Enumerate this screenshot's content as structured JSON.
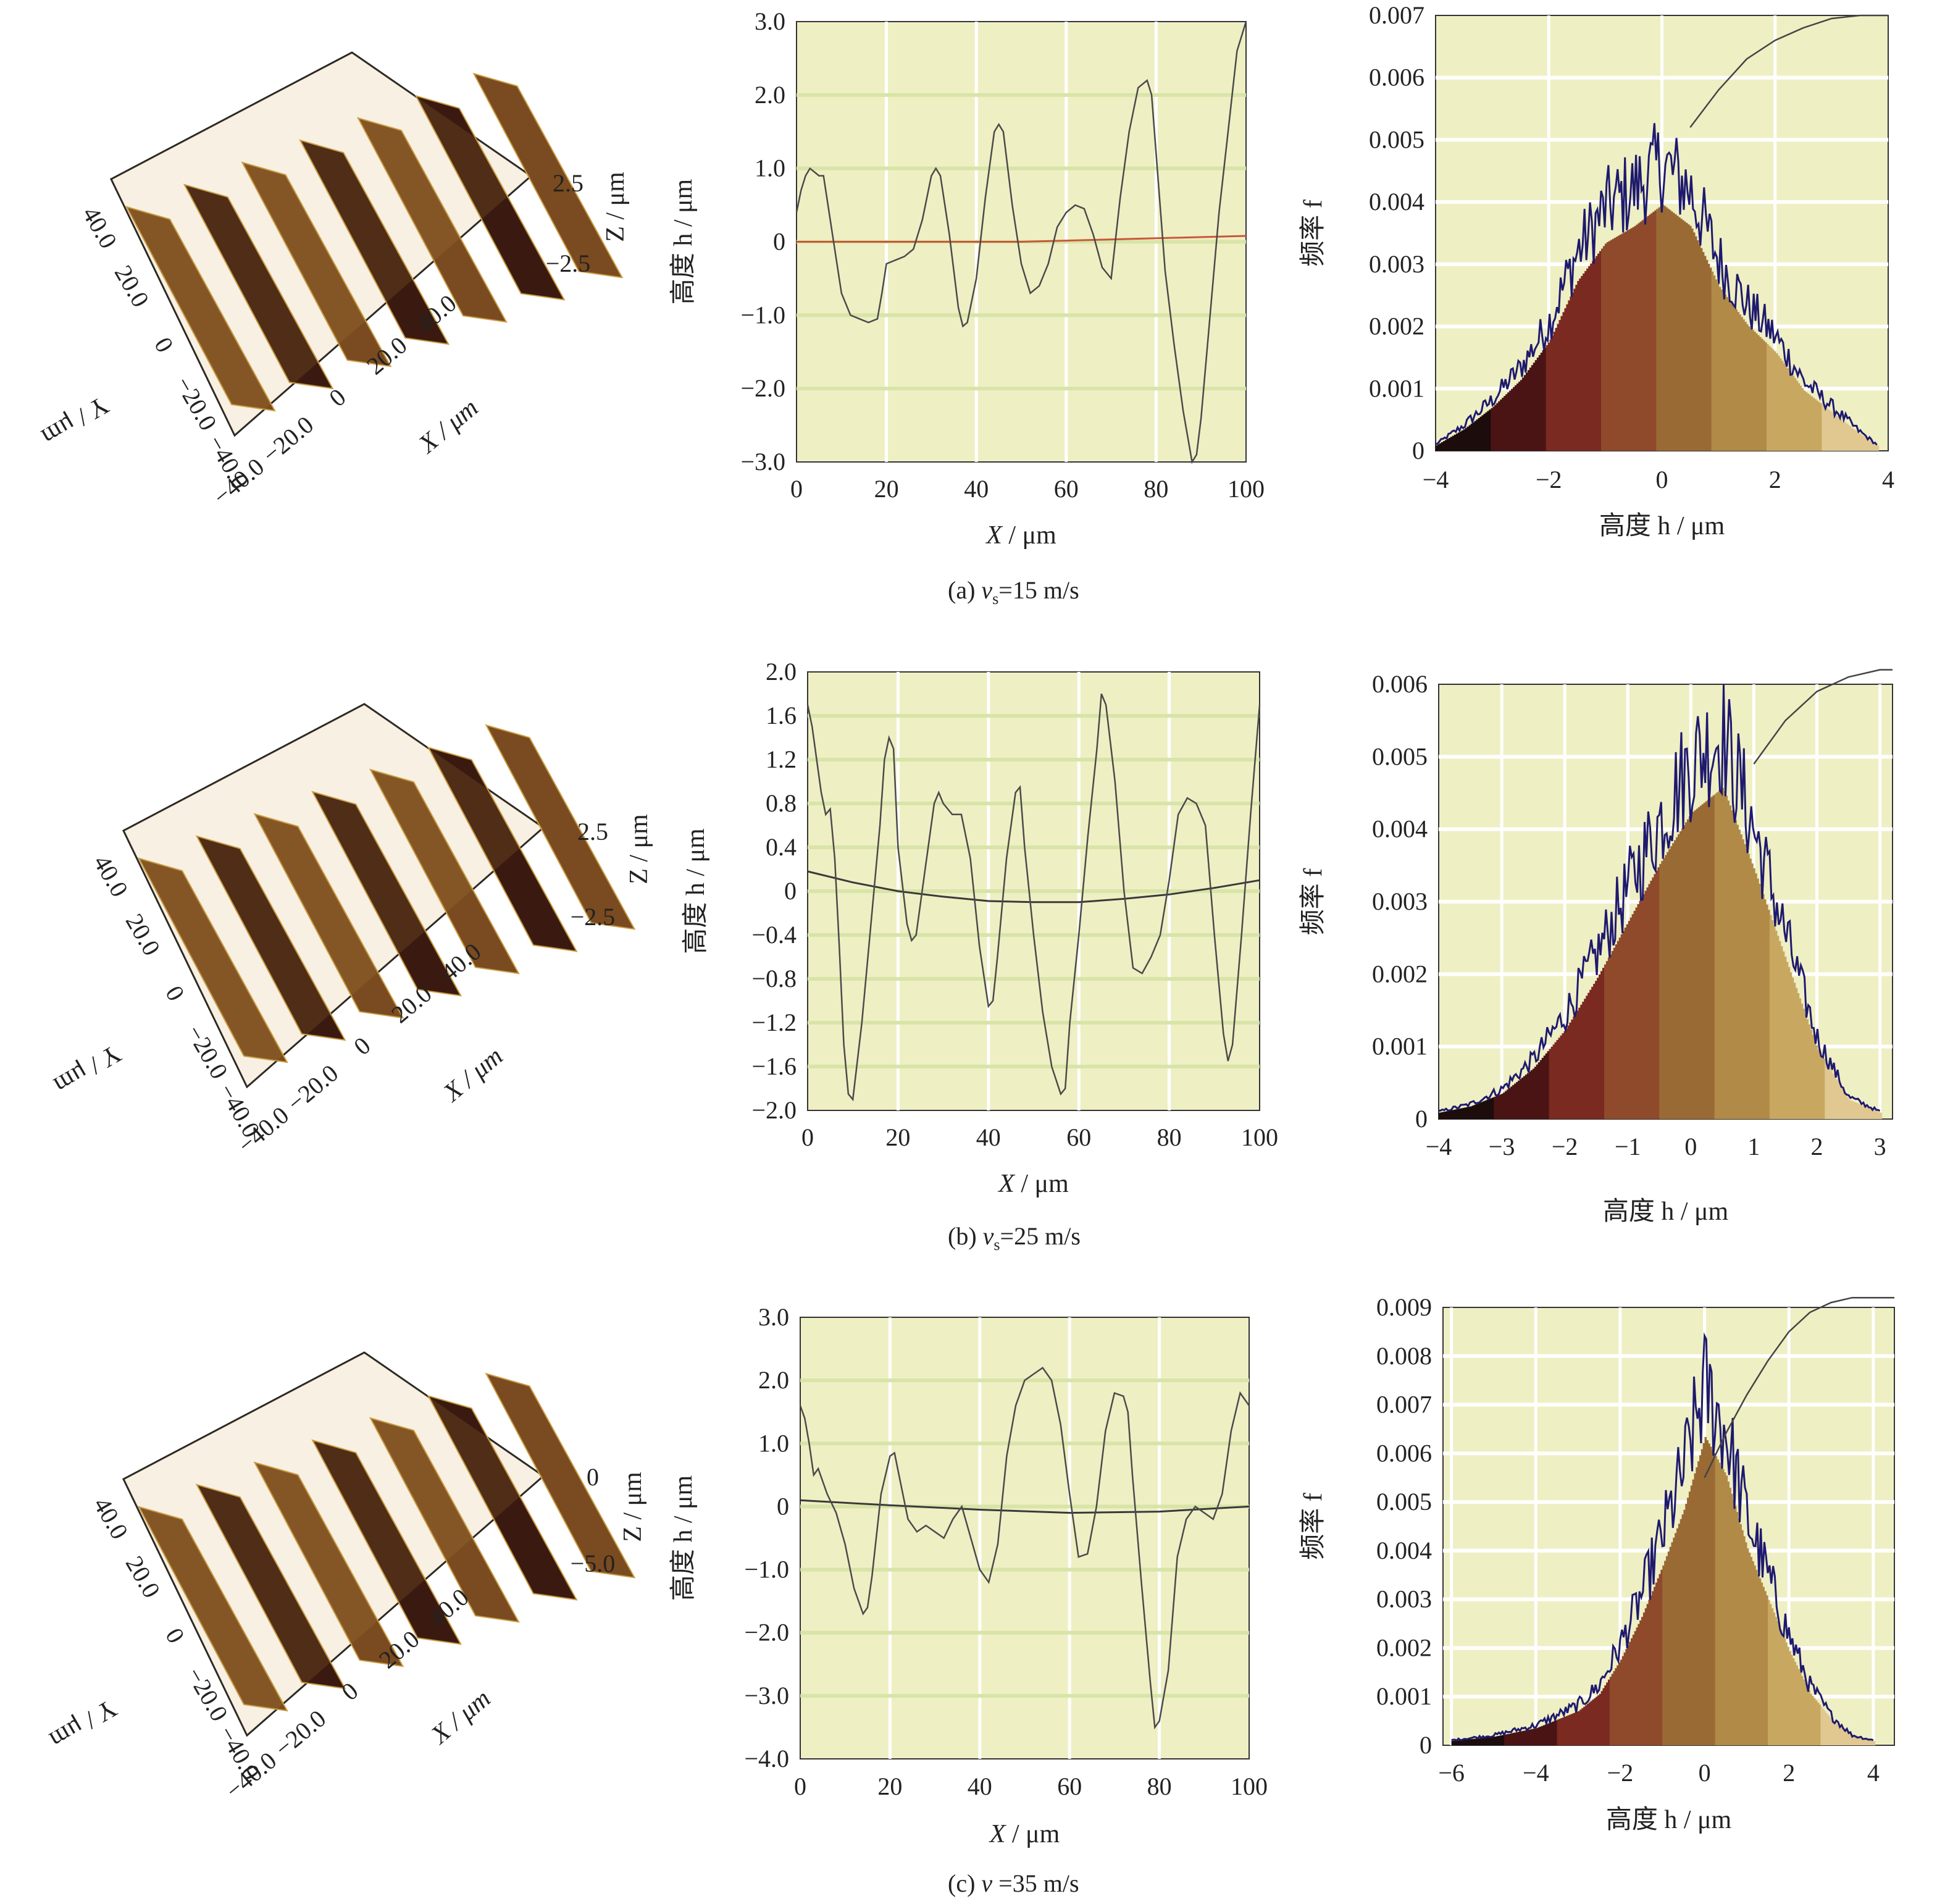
{
  "colors": {
    "plot_bg": "#efefc4",
    "plot_grid_major": "#ffffff",
    "plot_grid_band": "#d8e4a8",
    "profile_line": "#4a4a4a",
    "profile_fit_line": "#c8583a",
    "histogram_outline": "#1e1a6e",
    "histogram_fill_palette": [
      "#1c0c0c",
      "#4a1414",
      "#7a2a20",
      "#8e4a2a",
      "#9a6a34",
      "#b08a46",
      "#c8a860",
      "#e0c890"
    ],
    "surface_dark": "#3a1a10",
    "surface_mid": "#7a4a20",
    "surface_light": "#c89a40"
  },
  "panels": [
    {
      "caption": "(a) v_s=15 m/s",
      "caption_parts": {
        "prefix": "(a) ",
        "v": "v",
        "sub": "s",
        "suffix": "=15 m/s"
      },
      "surface": {
        "z_label": "Z / μm",
        "z_ticks": [
          "2.5",
          "−2.5"
        ],
        "x_label": "X / μm",
        "x_ticks": [
          "−40.0",
          "−20.0",
          "0",
          "20.0",
          "40.0"
        ],
        "y_label": "Y / μm",
        "y_ticks": [
          "40.0",
          "20.0",
          "0",
          "−20.0",
          "−40.0"
        ]
      }
    },
    {
      "caption": "(b) v_s=25 m/s",
      "caption_parts": {
        "prefix": "(b) ",
        "v": "v",
        "sub": "s",
        "suffix": "=25 m/s"
      },
      "surface": {
        "z_label": "Z / μm",
        "z_ticks": [
          "2.5",
          "−2.5"
        ],
        "x_label": "X / μm",
        "x_ticks": [
          "−40.0",
          "−20.0",
          "0",
          "20.0",
          "40.0"
        ],
        "y_label": "Y / μm",
        "y_ticks": [
          "40.0",
          "20.0",
          "0",
          "−20.0",
          "−40.0"
        ]
      }
    },
    {
      "caption": "(c) v =35 m/s",
      "caption_parts": {
        "prefix": "(c) ",
        "v": "v",
        "sub": "",
        "suffix": " =35 m/s"
      },
      "surface": {
        "z_label": "Z / μm",
        "z_ticks": [
          "0",
          "−5.0"
        ],
        "x_label": "X / μm",
        "x_ticks": [
          "−40.0",
          "−20.0",
          "0",
          "20.0",
          "40.0"
        ],
        "y_label": "Y / μm",
        "y_ticks": [
          "40.0",
          "20.0",
          "0",
          "−20.0",
          "−40.0"
        ]
      }
    }
  ],
  "chart_data": [
    {
      "type": "line",
      "panel": "a",
      "xlabel": "X / μm",
      "ylabel": "高度 h / μm",
      "xlim": [
        0,
        100
      ],
      "ylim": [
        -3.0,
        3.0
      ],
      "xticks": [
        "0",
        "20",
        "40",
        "60",
        "80",
        "100"
      ],
      "yticks": [
        "3.0",
        "2.0",
        "1.0",
        "0",
        "−1.0",
        "−2.0",
        "−3.0"
      ],
      "ytick_values": [
        3,
        2,
        1,
        0,
        -1,
        -2,
        -3
      ],
      "series": [
        {
          "x": [
            0,
            1,
            2,
            3,
            4,
            5,
            6,
            8,
            10,
            12,
            14,
            16,
            18,
            19,
            20,
            22,
            24,
            26,
            28,
            30,
            31,
            32,
            34,
            36,
            37,
            38,
            40,
            42,
            44,
            45,
            46,
            48,
            50,
            52,
            54,
            56,
            58,
            60,
            62,
            64,
            66,
            68,
            70,
            72,
            74,
            76,
            78,
            79,
            80,
            82,
            84,
            86,
            88,
            89,
            90,
            92,
            94,
            96,
            98,
            100
          ],
          "y": [
            0.4,
            0.7,
            0.9,
            1.0,
            0.95,
            0.9,
            0.9,
            0.1,
            -0.7,
            -1.0,
            -1.05,
            -1.1,
            -1.05,
            -0.7,
            -0.3,
            -0.25,
            -0.2,
            -0.1,
            0.3,
            0.9,
            1.0,
            0.9,
            0.1,
            -0.9,
            -1.15,
            -1.1,
            -0.5,
            0.6,
            1.5,
            1.6,
            1.5,
            0.5,
            -0.3,
            -0.7,
            -0.6,
            -0.3,
            0.2,
            0.4,
            0.5,
            0.45,
            0.1,
            -0.35,
            -0.5,
            0.6,
            1.5,
            2.1,
            2.2,
            2.0,
            1.2,
            -0.4,
            -1.4,
            -2.3,
            -3.0,
            -2.9,
            -2.4,
            -1.0,
            0.4,
            1.5,
            2.6,
            3.0
          ]
        },
        {
          "x": [
            0,
            50,
            100
          ],
          "y": [
            0.0,
            0.0,
            0.08
          ]
        }
      ]
    },
    {
      "type": "area",
      "panel": "a",
      "xlabel": "高度 h / μm",
      "ylabel": "频率 f",
      "xlim": [
        -4,
        4
      ],
      "ylim": [
        0,
        0.007
      ],
      "xticks": [
        "−4",
        "−2",
        "0",
        "2",
        "4"
      ],
      "yticks": [
        "0.007",
        "0.006",
        "0.005",
        "0.004",
        "0.003",
        "0.002",
        "0.001",
        "0"
      ],
      "ytick_values": [
        0.007,
        0.006,
        0.005,
        0.004,
        0.003,
        0.002,
        0.001,
        0
      ],
      "series": [
        {
          "x": [
            -4,
            -3.5,
            -3,
            -2.5,
            -2,
            -1.5,
            -1,
            -0.5,
            0,
            0.5,
            1,
            1.5,
            2,
            2.5,
            3,
            3.5,
            3.8
          ],
          "y": [
            0.0001,
            0.0004,
            0.0008,
            0.0013,
            0.002,
            0.0031,
            0.0038,
            0.0041,
            0.0045,
            0.0041,
            0.003,
            0.0023,
            0.0018,
            0.0011,
            0.0007,
            0.0003,
            0.0001
          ]
        },
        {
          "x": [
            0.5,
            1,
            1.5,
            2,
            2.5,
            3,
            3.5,
            4
          ],
          "y": [
            0.0052,
            0.0058,
            0.0063,
            0.0066,
            0.0068,
            0.00695,
            0.007,
            0.007
          ]
        }
      ]
    },
    {
      "type": "line",
      "panel": "b",
      "xlabel": "X / μm",
      "ylabel": "高度 h / μm",
      "xlim": [
        0,
        100
      ],
      "ylim": [
        -2.0,
        2.0
      ],
      "xticks": [
        "0",
        "20",
        "40",
        "60",
        "80",
        "100"
      ],
      "yticks": [
        "2.0",
        "1.6",
        "1.2",
        "0.8",
        "0.4",
        "0",
        "−0.4",
        "−0.8",
        "−1.2",
        "−1.6",
        "−2.0"
      ],
      "ytick_values": [
        2.0,
        1.6,
        1.2,
        0.8,
        0.4,
        0,
        -0.4,
        -0.8,
        -1.2,
        -1.6,
        -2.0
      ],
      "series": [
        {
          "x": [
            0,
            1,
            2,
            3,
            4,
            5,
            6,
            7,
            8,
            9,
            10,
            12,
            14,
            16,
            17,
            18,
            19,
            20,
            22,
            23,
            24,
            26,
            28,
            29,
            30,
            32,
            34,
            36,
            38,
            40,
            41,
            42,
            44,
            46,
            47,
            48,
            50,
            52,
            54,
            56,
            57,
            58,
            60,
            62,
            64,
            65,
            66,
            68,
            70,
            72,
            74,
            76,
            78,
            80,
            82,
            84,
            86,
            88,
            90,
            92,
            93,
            94,
            96,
            98,
            100
          ],
          "y": [
            1.7,
            1.5,
            1.2,
            0.9,
            0.7,
            0.75,
            0.3,
            -0.5,
            -1.4,
            -1.85,
            -1.9,
            -1.2,
            -0.3,
            0.6,
            1.2,
            1.4,
            1.3,
            0.4,
            -0.3,
            -0.45,
            -0.4,
            0.2,
            0.8,
            0.9,
            0.8,
            0.7,
            0.7,
            0.3,
            -0.5,
            -1.05,
            -1.0,
            -0.6,
            0.3,
            0.9,
            0.95,
            0.4,
            -0.4,
            -1.1,
            -1.6,
            -1.85,
            -1.8,
            -1.2,
            -0.4,
            0.5,
            1.3,
            1.8,
            1.7,
            1.0,
            0.0,
            -0.7,
            -0.75,
            -0.6,
            -0.4,
            0.1,
            0.7,
            0.85,
            0.8,
            0.6,
            -0.4,
            -1.3,
            -1.55,
            -1.4,
            -0.4,
            0.7,
            1.7
          ]
        },
        {
          "x": [
            0,
            10,
            20,
            30,
            40,
            50,
            60,
            70,
            80,
            90,
            100
          ],
          "y": [
            0.18,
            0.08,
            0.0,
            -0.05,
            -0.09,
            -0.1,
            -0.1,
            -0.07,
            -0.03,
            0.03,
            0.1
          ]
        }
      ]
    },
    {
      "type": "area",
      "panel": "b",
      "xlabel": "高度 h / μm",
      "ylabel": "频率 f",
      "xlim": [
        -4,
        3.2
      ],
      "ylim": [
        0,
        0.006
      ],
      "xticks": [
        "−4",
        "−3",
        "−2",
        "−1",
        "0",
        "1",
        "2",
        "3"
      ],
      "yticks": [
        "0.006",
        "0.005",
        "0.004",
        "0.003",
        "0.002",
        "0.001",
        "0"
      ],
      "ytick_values": [
        0.006,
        0.005,
        0.004,
        0.003,
        0.002,
        0.001,
        0
      ],
      "series": [
        {
          "x": [
            -4,
            -3.5,
            -3,
            -2.5,
            -2,
            -1.5,
            -1,
            -0.5,
            0,
            0.5,
            1,
            1.5,
            2,
            2.5,
            3
          ],
          "y": [
            0.0001,
            0.0002,
            0.0004,
            0.0008,
            0.0014,
            0.0022,
            0.0031,
            0.004,
            0.0048,
            0.0052,
            0.0039,
            0.0025,
            0.0011,
            0.0003,
            0.0001
          ]
        },
        {
          "x": [
            1,
            1.5,
            2,
            2.5,
            3,
            3.2
          ],
          "y": [
            0.0049,
            0.0055,
            0.0059,
            0.0061,
            0.0062,
            0.0062
          ]
        }
      ]
    },
    {
      "type": "line",
      "panel": "c",
      "xlabel": "X / μm",
      "ylabel": "高度 h / μm",
      "xlim": [
        0,
        100
      ],
      "ylim": [
        -4.0,
        3.0
      ],
      "xticks": [
        "0",
        "20",
        "40",
        "60",
        "80",
        "100"
      ],
      "yticks": [
        "3.0",
        "2.0",
        "1.0",
        "0",
        "−1.0",
        "−2.0",
        "−3.0",
        "−4.0"
      ],
      "ytick_values": [
        3,
        2,
        1,
        0,
        -1,
        -2,
        -3,
        -4
      ],
      "series": [
        {
          "x": [
            0,
            1,
            2,
            3,
            4,
            6,
            8,
            10,
            12,
            14,
            15,
            16,
            18,
            20,
            21,
            22,
            24,
            26,
            28,
            30,
            32,
            34,
            36,
            38,
            40,
            42,
            44,
            46,
            48,
            50,
            52,
            54,
            55,
            56,
            58,
            60,
            62,
            64,
            66,
            68,
            70,
            72,
            73,
            74,
            76,
            78,
            79,
            80,
            82,
            84,
            86,
            88,
            90,
            92,
            94,
            96,
            98,
            100
          ],
          "y": [
            1.6,
            1.4,
            1.0,
            0.5,
            0.6,
            0.2,
            -0.1,
            -0.6,
            -1.3,
            -1.7,
            -1.6,
            -1.1,
            0.2,
            0.8,
            0.85,
            0.5,
            -0.2,
            -0.4,
            -0.3,
            -0.4,
            -0.5,
            -0.2,
            0.0,
            -0.5,
            -1.0,
            -1.2,
            -0.6,
            0.8,
            1.6,
            2.0,
            2.1,
            2.2,
            2.1,
            2.0,
            1.3,
            0.2,
            -0.8,
            -0.75,
            0.0,
            1.2,
            1.8,
            1.75,
            1.5,
            0.5,
            -1.2,
            -2.8,
            -3.5,
            -3.4,
            -2.6,
            -0.8,
            -0.2,
            0.0,
            -0.1,
            -0.2,
            0.2,
            1.2,
            1.8,
            1.6
          ]
        },
        {
          "x": [
            0,
            20,
            40,
            60,
            80,
            100
          ],
          "y": [
            0.1,
            0.02,
            -0.05,
            -0.1,
            -0.08,
            0.0
          ]
        }
      ]
    },
    {
      "type": "area",
      "panel": "c",
      "xlabel": "高度 h / μm",
      "ylabel": "频率 f",
      "xlim": [
        -6.2,
        4.5
      ],
      "ylim": [
        0,
        0.009
      ],
      "xticks": [
        "−6",
        "−4",
        "−2",
        "0",
        "2",
        "4"
      ],
      "yticks": [
        "0.009",
        "0.008",
        "0.007",
        "0.006",
        "0.005",
        "0.004",
        "0.003",
        "0.002",
        "0.001",
        "0"
      ],
      "ytick_values": [
        0.009,
        0.008,
        0.007,
        0.006,
        0.005,
        0.004,
        0.003,
        0.002,
        0.001,
        0
      ],
      "series": [
        {
          "x": [
            -6,
            -5,
            -4,
            -3,
            -2.5,
            -2,
            -1.5,
            -1,
            -0.5,
            0,
            0.5,
            1,
            1.5,
            2,
            2.5,
            3,
            3.5,
            4
          ],
          "y": [
            0.0001,
            0.0002,
            0.0004,
            0.0008,
            0.0012,
            0.002,
            0.003,
            0.0042,
            0.0055,
            0.0072,
            0.0063,
            0.0046,
            0.0034,
            0.0022,
            0.0012,
            0.0006,
            0.0002,
            0.0001
          ]
        },
        {
          "x": [
            0,
            0.5,
            1,
            1.5,
            2,
            2.5,
            3,
            3.5,
            4,
            4.5
          ],
          "y": [
            0.0055,
            0.0064,
            0.0072,
            0.0079,
            0.0085,
            0.0089,
            0.0091,
            0.0092,
            0.0092,
            0.0092
          ]
        }
      ]
    }
  ]
}
